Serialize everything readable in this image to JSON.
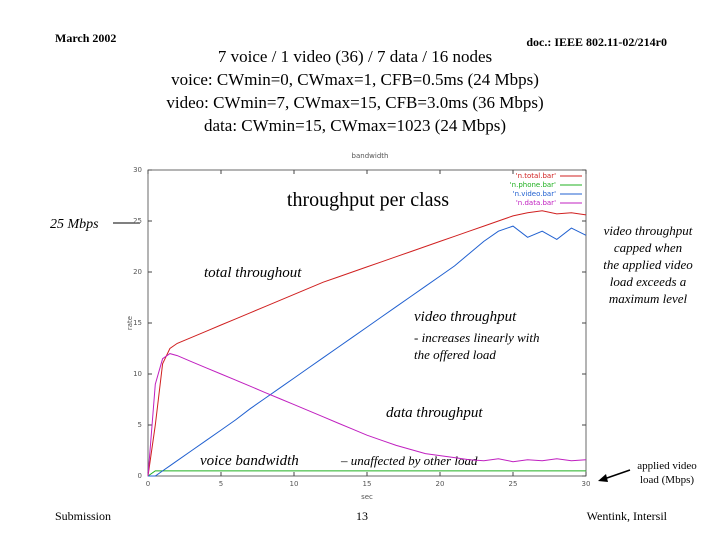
{
  "header": {
    "date": "March 2002",
    "doc": "doc.: IEEE 802.11-02/214r0",
    "title_lines": [
      "7 voice / 1 video (36) / 7 data / 16 nodes",
      "voice: CWmin=0, CWmax=1, CFB=0.5ms (24 Mbps)",
      "video: CWmin=7, CWmax=15, CFB=3.0ms (36 Mbps)",
      "data: CWmin=15, CWmax=1023 (24 Mbps)"
    ]
  },
  "footer": {
    "left": "Submission",
    "page": "13",
    "right": "Wentink, Intersil"
  },
  "chart_data": {
    "type": "line",
    "title": "bandwidth",
    "x_label": "sec",
    "y_label": "rate",
    "xlim": [
      0,
      30
    ],
    "xticks": [
      0,
      5,
      10,
      15,
      20,
      25,
      30
    ],
    "ylim": [
      0,
      30
    ],
    "yticks": [
      0,
      5,
      10,
      15,
      20,
      25,
      30
    ],
    "x": [
      0,
      0.5,
      1,
      1.5,
      2,
      3,
      4,
      5,
      6,
      7,
      8,
      9,
      10,
      11,
      12,
      13,
      14,
      15,
      16,
      17,
      18,
      19,
      20,
      21,
      22,
      23,
      24,
      25,
      26,
      27,
      28,
      29,
      30
    ],
    "series": [
      {
        "name": "'n.total.bar'",
        "color": "#d02020",
        "values": [
          0,
          5,
          11,
          12.5,
          13,
          13.6,
          14.2,
          14.8,
          15.4,
          16,
          16.6,
          17.2,
          17.8,
          18.4,
          19,
          19.5,
          20,
          20.5,
          21,
          21.5,
          22,
          22.5,
          23,
          23.5,
          24,
          24.5,
          25,
          25.5,
          25.8,
          26,
          25.7,
          25.8,
          25.6
        ]
      },
      {
        "name": "'n.phone.bar'",
        "color": "#20b020",
        "values": [
          0,
          0.5,
          0.5,
          0.5,
          0.5,
          0.5,
          0.5,
          0.5,
          0.5,
          0.5,
          0.5,
          0.5,
          0.5,
          0.5,
          0.5,
          0.5,
          0.5,
          0.5,
          0.5,
          0.5,
          0.5,
          0.5,
          0.5,
          0.5,
          0.5,
          0.5,
          0.5,
          0.5,
          0.5,
          0.5,
          0.5,
          0.5,
          0.5
        ]
      },
      {
        "name": "'n.video.bar'",
        "color": "#2060d0",
        "values": [
          0,
          0,
          0.5,
          1,
          1.5,
          2.5,
          3.5,
          4.5,
          5.5,
          6.6,
          7.6,
          8.6,
          9.6,
          10.6,
          11.6,
          12.6,
          13.6,
          14.6,
          15.6,
          16.6,
          17.6,
          18.6,
          19.6,
          20.6,
          21.8,
          23,
          24,
          24.5,
          23.4,
          24,
          23.2,
          24.3,
          23.6
        ]
      },
      {
        "name": "'n.data.bar'",
        "color": "#c020c0",
        "values": [
          0,
          9,
          11.5,
          12,
          11.8,
          11.2,
          10.6,
          10,
          9.4,
          8.8,
          8.2,
          7.6,
          7,
          6.4,
          5.8,
          5.2,
          4.6,
          4,
          3.5,
          3,
          2.6,
          2.2,
          2,
          1.8,
          1.6,
          1.5,
          1.7,
          1.4,
          1.6,
          1.5,
          1.7,
          1.5,
          1.6
        ]
      }
    ],
    "legend": "upper right",
    "annotations": [
      "throughput per class",
      "25 Mbps",
      "total throughout",
      "video throughput",
      "- increases linearly with",
      "the offered load",
      "data throughput",
      "voice bandwidth",
      "– unaffected by other load",
      "video throughput",
      "capped when",
      "the applied video",
      "load exceeds a",
      "maximum level",
      "applied video",
      "load (Mbps)"
    ]
  }
}
